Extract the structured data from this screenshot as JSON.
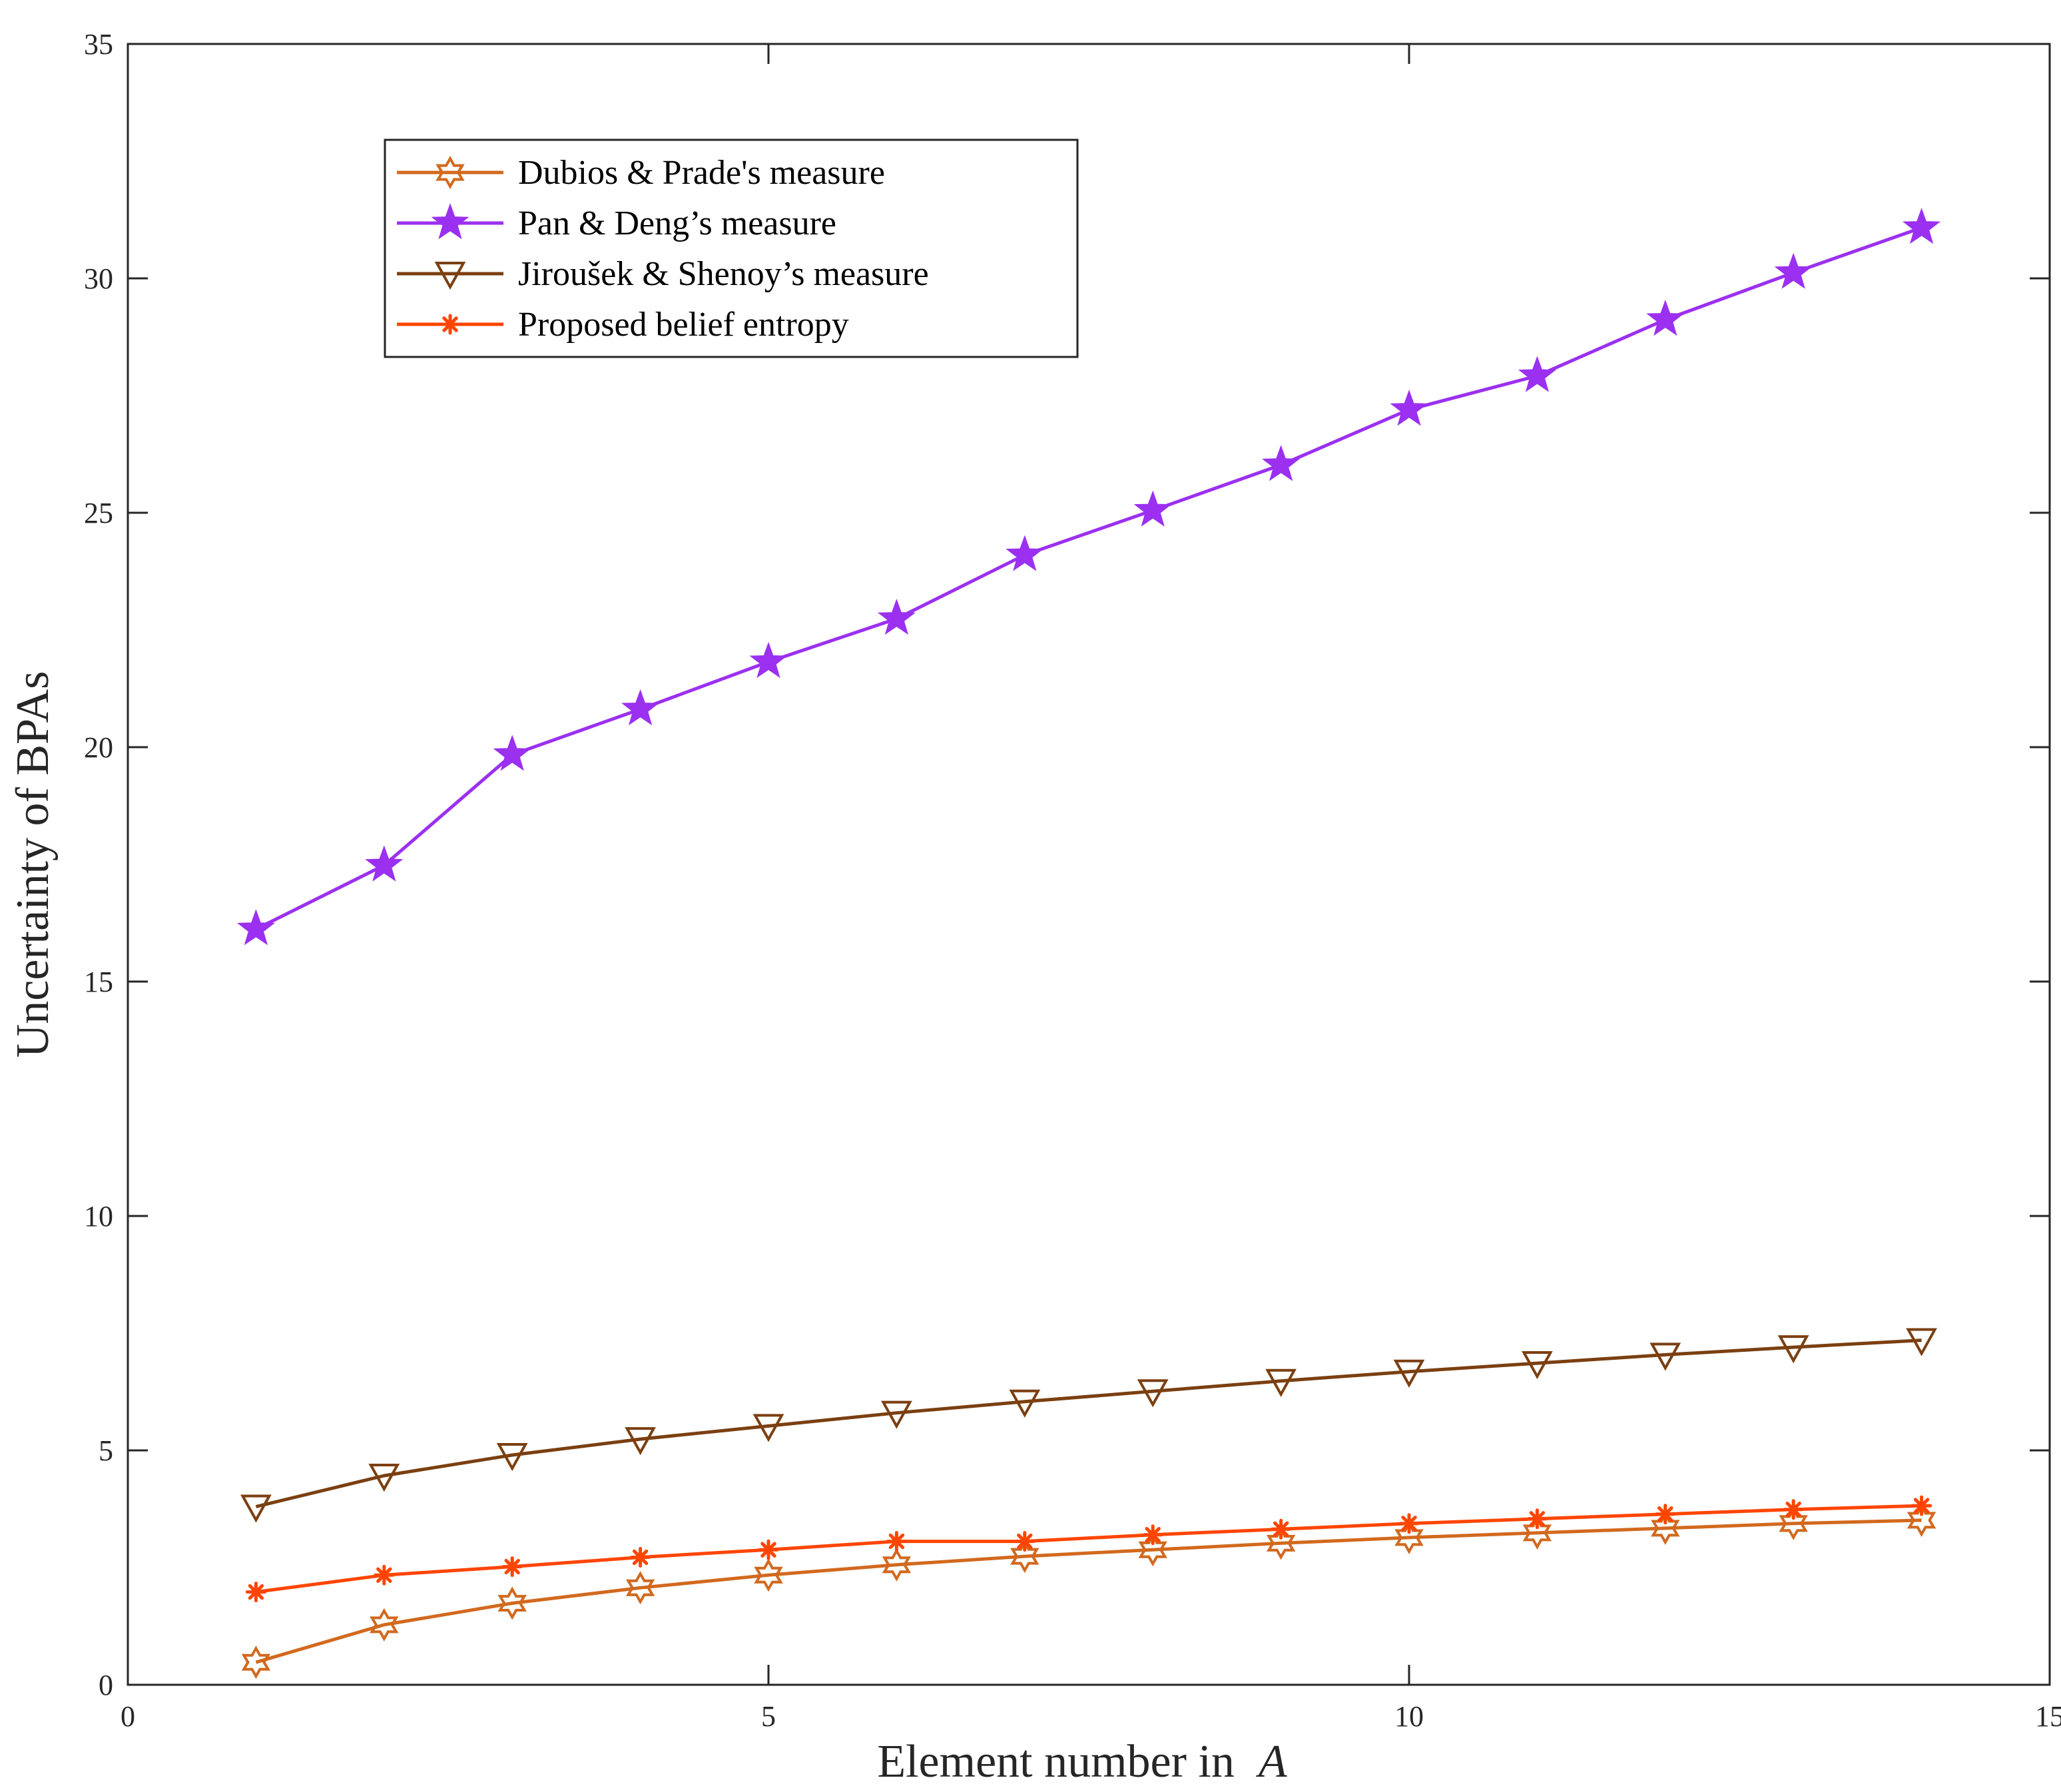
{
  "chart_data": {
    "type": "line",
    "title": "",
    "xlabel": "Element number in",
    "xlabel_var": "A",
    "ylabel": "Uncertainty of BPAs",
    "xlim": [
      0,
      15
    ],
    "ylim": [
      0,
      35
    ],
    "xticks": [
      0,
      5,
      10,
      15
    ],
    "yticks": [
      0,
      5,
      10,
      15,
      20,
      25,
      30,
      35
    ],
    "grid": false,
    "legend_position": "top-left",
    "x": [
      1,
      2,
      3,
      4,
      5,
      6,
      7,
      8,
      9,
      10,
      11,
      12,
      13,
      14
    ],
    "series": [
      {
        "name": "Dubios & Prade's measure",
        "color": "#D2691E",
        "marker": "hexagram",
        "values": [
          0.48,
          1.28,
          1.74,
          2.07,
          2.34,
          2.56,
          2.74,
          2.88,
          3.02,
          3.14,
          3.24,
          3.34,
          3.44,
          3.51
        ]
      },
      {
        "name": "Pan & Deng’s measure",
        "color": "#9B30F0",
        "marker": "pentagram",
        "values": [
          16.12,
          17.48,
          19.84,
          20.81,
          21.82,
          22.74,
          24.1,
          25.05,
          26.02,
          27.2,
          27.92,
          29.12,
          30.12,
          31.08
        ]
      },
      {
        "name": "Jiroušek & Shenoy’s measure",
        "color": "#7B3F10",
        "marker": "triangle-down",
        "values": [
          3.8,
          4.46,
          4.9,
          5.24,
          5.52,
          5.8,
          6.04,
          6.26,
          6.48,
          6.68,
          6.86,
          7.04,
          7.2,
          7.35
        ]
      },
      {
        "name": "Proposed belief entropy",
        "color": "#FF4500",
        "marker": "asterisk",
        "values": [
          1.98,
          2.34,
          2.52,
          2.72,
          2.88,
          3.06,
          3.06,
          3.2,
          3.32,
          3.44,
          3.54,
          3.64,
          3.74,
          3.82
        ]
      }
    ]
  }
}
